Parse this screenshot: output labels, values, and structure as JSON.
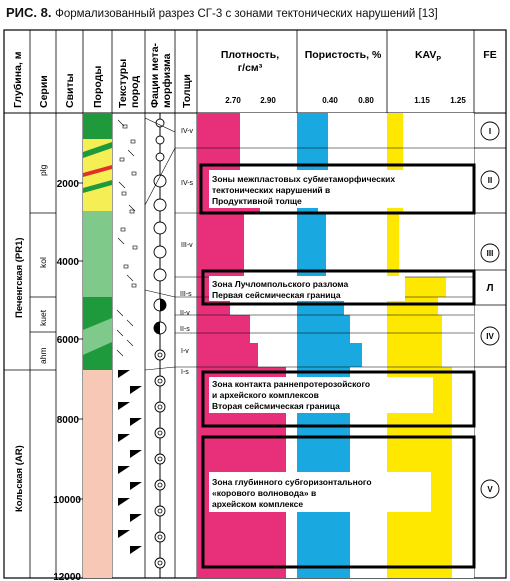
{
  "figure": {
    "number": "РИС. 8.",
    "caption": "Формализованный разрез СГ-3 с зонами тектонических нарушений [13]"
  },
  "headers": {
    "depth": "Глубина, м",
    "series": "Серии",
    "suites": "Свиты",
    "rocks": "Породы",
    "textures_l1": "Текстуры",
    "textures_l2": "пород",
    "facies_l1": "Фации мета-",
    "facies_l2": "морфизма",
    "strata": "Толщи",
    "density_l1": "Плотность,",
    "density_l2": "г/см³",
    "porosity": "Пористость, %",
    "kav": "KAV",
    "kav_sub": "P",
    "fe": "FE"
  },
  "scales": {
    "density": [
      "2.70",
      "2.90"
    ],
    "porosity": [
      "0.40",
      "0.80"
    ],
    "kav": [
      "1.15",
      "1.25"
    ]
  },
  "depth_ticks": [
    "2000",
    "4000",
    "6000",
    "8000",
    "10000",
    "12000"
  ],
  "series": {
    "upper": "Печенгская (PR1)",
    "lower": "Кольская (AR)"
  },
  "suites": [
    "plg",
    "kol",
    "kuet",
    "ahm"
  ],
  "strata_labels": [
    "IV-v",
    "IV-s",
    "III-v",
    "III-s",
    "II-v",
    "II-s",
    "I-v",
    "I-s"
  ],
  "fe_labels": [
    "I",
    "II",
    "III",
    "Л",
    "IV",
    "V"
  ],
  "zones": [
    {
      "line1": "Зоны межпластовых субметаморфических",
      "line2": "тектонических нарушений в",
      "line3": "Продуктивной толще"
    },
    {
      "line1": "Зона Лучломпольского разлома",
      "line2": "Первая сейсмическая граница"
    },
    {
      "line1": "Зона контакта раннепротерозойского",
      "line2": "и архейского комплексов",
      "line3": "Вторая сейсмическая граница"
    },
    {
      "line1": "Зона глубинного субгоризонтального",
      "line2": "«корового волновода» в",
      "line3": "архейском комплексе"
    }
  ],
  "colors": {
    "density": "#e8307a",
    "porosity": "#1aa8e0",
    "kav": "#ffe800",
    "rock_green": "#1e9a3c",
    "rock_light_green": "#7fc98a",
    "rock_yellow": "#f5ee55",
    "rock_pink": "#f7c8b5"
  }
}
